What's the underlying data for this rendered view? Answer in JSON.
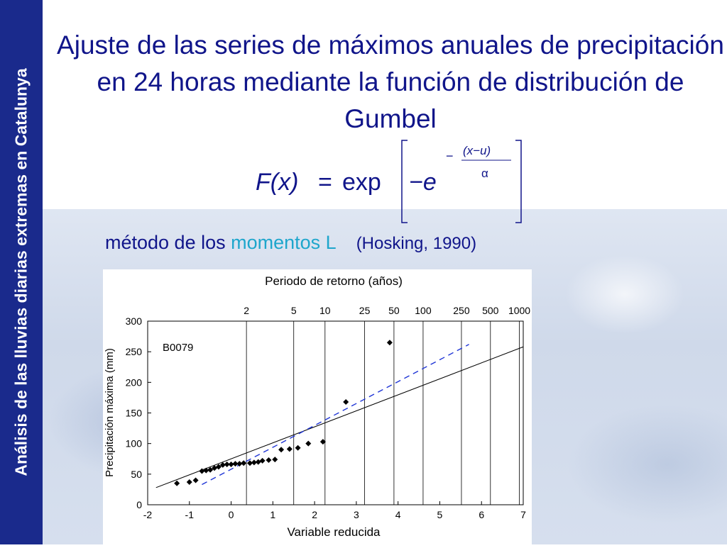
{
  "sidebar": {
    "text": "Análisis de las lluvias diarias extremas en Catalunya"
  },
  "slide": {
    "title": "Ajuste de las series de máximos anuales de precipitación en 24 horas mediante la función de distribución de Gumbel",
    "formula": {
      "lhs": "F(x)",
      "eq": "=",
      "exp": "exp",
      "inner": "−e",
      "exponent_num": "(x−u)",
      "exponent_den": "α",
      "exponent_sign": "−"
    },
    "method": {
      "prefix": "método de los ",
      "highlight": "momentos L",
      "reference": "(Hosking, 1990)"
    }
  },
  "colors": {
    "sidebar": "#1a2a8c",
    "title": "#10158a",
    "highlight": "#1ea6cc",
    "fit_dashed": "#1f35d6"
  },
  "chart_data": {
    "type": "scatter",
    "station_label": "B0079",
    "top_axis_title": "Periodo de retorno (años)",
    "xlabel": "Variable reducida",
    "ylabel": "Precipitación máxima (mm)",
    "xlim": [
      -2,
      7
    ],
    "ylim": [
      0,
      300
    ],
    "x_ticks": [
      -2,
      -1,
      0,
      1,
      2,
      3,
      4,
      5,
      6,
      7
    ],
    "y_ticks": [
      0,
      50,
      100,
      150,
      200,
      250,
      300
    ],
    "return_periods": [
      {
        "label": "2",
        "x": 0.367
      },
      {
        "label": "5",
        "x": 1.5
      },
      {
        "label": "10",
        "x": 2.25
      },
      {
        "label": "25",
        "x": 3.199
      },
      {
        "label": "50",
        "x": 3.902
      },
      {
        "label": "100",
        "x": 4.6
      },
      {
        "label": "250",
        "x": 5.519
      },
      {
        "label": "500",
        "x": 6.214
      },
      {
        "label": "1000",
        "x": 6.907
      }
    ],
    "points": [
      [
        -1.3,
        35
      ],
      [
        -1.0,
        37
      ],
      [
        -0.85,
        40
      ],
      [
        -0.7,
        55
      ],
      [
        -0.6,
        56
      ],
      [
        -0.5,
        57
      ],
      [
        -0.4,
        60
      ],
      [
        -0.3,
        62
      ],
      [
        -0.2,
        65
      ],
      [
        -0.1,
        66
      ],
      [
        0.0,
        66
      ],
      [
        0.1,
        67
      ],
      [
        0.2,
        67
      ],
      [
        0.3,
        68
      ],
      [
        0.45,
        68
      ],
      [
        0.55,
        69
      ],
      [
        0.65,
        70
      ],
      [
        0.75,
        72
      ],
      [
        0.9,
        73
      ],
      [
        1.05,
        74
      ],
      [
        1.2,
        90
      ],
      [
        1.4,
        91
      ],
      [
        1.6,
        93
      ],
      [
        1.85,
        100
      ],
      [
        2.2,
        103
      ],
      [
        2.75,
        168
      ],
      [
        3.8,
        265
      ]
    ],
    "series": [
      {
        "style": "solid",
        "x": [
          -1.8,
          7
        ],
        "y": [
          28,
          258
        ]
      },
      {
        "style": "dashed",
        "x": [
          -0.7,
          5.7
        ],
        "y": [
          33,
          262
        ]
      }
    ]
  }
}
